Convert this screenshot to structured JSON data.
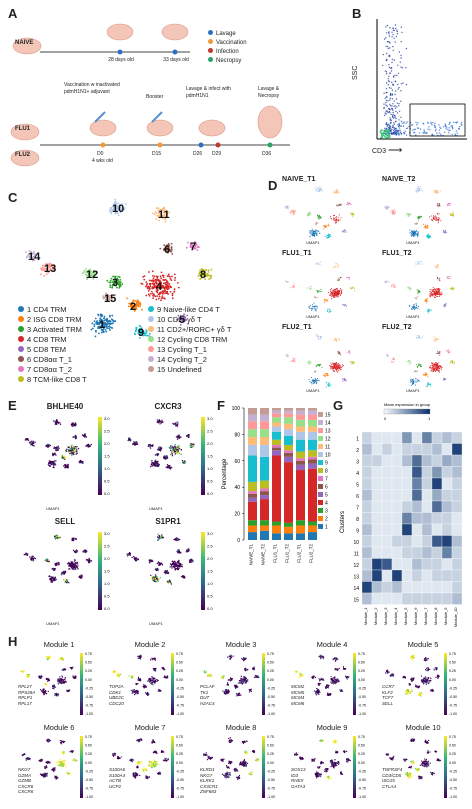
{
  "panels": {
    "A": "A",
    "B": "B",
    "C": "C",
    "D": "D",
    "E": "E",
    "F": "F",
    "G": "G",
    "H": "H"
  },
  "timeline": {
    "groups": [
      "NAIVE",
      "FLU1",
      "FLU2"
    ],
    "naive_ages": [
      "28 days old",
      "33 days old"
    ],
    "legend": [
      {
        "label": "Lavage",
        "color": "#2e6fc1"
      },
      {
        "label": "Vaccination",
        "color": "#f29a3a"
      },
      {
        "label": "Infection",
        "color": "#c0392b"
      },
      {
        "label": "Necropsy",
        "color": "#2aa36b"
      }
    ],
    "events": [
      "Vaccination w inactivated pdmH1N1+ adjuvant",
      "Booster",
      "Lavage & infect with pdmH1N1",
      "Lavage & Necropsy"
    ],
    "days": [
      "D0",
      "D15",
      "D26",
      "D29",
      "D36"
    ],
    "age_note": "4 wks old"
  },
  "flow": {
    "xlabel": "CD3",
    "ylabel": "SSC"
  },
  "umap_clusters": [
    {
      "id": "1",
      "name": "CD4 TRM",
      "color": "#1f77b4"
    },
    {
      "id": "2",
      "name": "ISG CD8 TRM",
      "color": "#ff7f0e"
    },
    {
      "id": "3",
      "name": "Activated TRM",
      "color": "#2ca02c"
    },
    {
      "id": "4",
      "name": "CD8 TRM",
      "color": "#d62728"
    },
    {
      "id": "5",
      "name": "CD8 TEM",
      "color": "#9467bd"
    },
    {
      "id": "6",
      "name": "CD8αα T_1",
      "color": "#8c564b"
    },
    {
      "id": "7",
      "name": "CD8αα T_2",
      "color": "#e377c2"
    },
    {
      "id": "8",
      "name": "TCM-like CD8 T",
      "color": "#bcbd22"
    },
    {
      "id": "9",
      "name": "Naive-like CD4 T",
      "color": "#17becf"
    },
    {
      "id": "10",
      "name": "CD2- γδ T",
      "color": "#aec7e8"
    },
    {
      "id": "11",
      "name": "CD2+/RORC+ γδ T",
      "color": "#ffbb78"
    },
    {
      "id": "12",
      "name": "Cycling CD8 TRM",
      "color": "#98df8a"
    },
    {
      "id": "13",
      "name": "Cycling T_1",
      "color": "#ff9896"
    },
    {
      "id": "14",
      "name": "Cycling T_2",
      "color": "#c5b0d5"
    },
    {
      "id": "15",
      "name": "Undefined",
      "color": "#c49c94"
    }
  ],
  "umap_axis": {
    "x": "UMAP1",
    "y": "UMAP2"
  },
  "samples": [
    "NAIVE_T1",
    "NAIVE_T2",
    "FLU1_T1",
    "FLU1_T2",
    "FLU2_T1",
    "FLU2_T2"
  ],
  "genes": [
    "BHLHE40",
    "CXCR3",
    "SELL",
    "S1PR1"
  ],
  "gene_scale": [
    "3.0",
    "2.5",
    "2.0",
    "1.5",
    "1.0",
    "0.5",
    "0.0"
  ],
  "chart_data": {
    "type": "bar",
    "stacked": true,
    "categories": [
      "NAIVE_T1",
      "NAIVE_T2",
      "FLU1_T1",
      "FLU1_T2",
      "FLU2_T1",
      "FLU2_T2"
    ],
    "ylabel": "Percentage",
    "ylim": [
      0,
      100
    ],
    "yticks": [
      0,
      20,
      40,
      60,
      80,
      100
    ],
    "legend_order": [
      "15",
      "14",
      "13",
      "12",
      "11",
      "10",
      "9",
      "8",
      "7",
      "6",
      "5",
      "4",
      "3",
      "2",
      "1"
    ],
    "series": [
      {
        "name": "1",
        "values": [
          6,
          7,
          5,
          5,
          5,
          6
        ]
      },
      {
        "name": "2",
        "values": [
          5,
          4,
          6,
          5,
          6,
          5
        ]
      },
      {
        "name": "3",
        "values": [
          4,
          4,
          3,
          3,
          4,
          3
        ]
      },
      {
        "name": "4",
        "values": [
          14,
          16,
          50,
          46,
          38,
          40
        ]
      },
      {
        "name": "5",
        "values": [
          3,
          3,
          4,
          4,
          4,
          4
        ]
      },
      {
        "name": "6",
        "values": [
          3,
          3,
          2,
          3,
          3,
          3
        ]
      },
      {
        "name": "7",
        "values": [
          2,
          2,
          2,
          2,
          2,
          2
        ]
      },
      {
        "name": "8",
        "values": [
          7,
          6,
          4,
          4,
          5,
          5
        ]
      },
      {
        "name": "9",
        "values": [
          20,
          18,
          6,
          7,
          9,
          8
        ]
      },
      {
        "name": "10",
        "values": [
          8,
          9,
          4,
          5,
          6,
          6
        ]
      },
      {
        "name": "11",
        "values": [
          6,
          6,
          3,
          4,
          4,
          4
        ]
      },
      {
        "name": "12",
        "values": [
          6,
          6,
          4,
          5,
          5,
          5
        ]
      },
      {
        "name": "13",
        "values": [
          6,
          6,
          3,
          3,
          4,
          4
        ]
      },
      {
        "name": "14",
        "values": [
          5,
          5,
          2,
          2,
          3,
          3
        ]
      },
      {
        "name": "15",
        "values": [
          5,
          5,
          2,
          2,
          2,
          2
        ]
      }
    ]
  },
  "heatmap": {
    "title": "Mean expression in group",
    "scale": [
      "0",
      "1"
    ],
    "ylabel": "Clusters",
    "rows": [
      "1",
      "2",
      "3",
      "4",
      "5",
      "6",
      "7",
      "8",
      "9",
      "10",
      "11",
      "12",
      "13",
      "14",
      "15"
    ],
    "cols": [
      "Module_1",
      "Module_2",
      "Module_3",
      "Module_4",
      "Module_5",
      "Module_6",
      "Module_7",
      "Module_8",
      "Module_9",
      "Module_10"
    ],
    "values": [
      [
        0.2,
        0.1,
        0.1,
        0.1,
        0.5,
        0.1,
        0.6,
        0.2,
        0.3,
        0.2
      ],
      [
        0.3,
        0.1,
        0.2,
        0.1,
        0.2,
        0.2,
        0.2,
        0.3,
        0.1,
        0.9
      ],
      [
        0.2,
        0.2,
        0.1,
        0.1,
        0.3,
        0.7,
        0.3,
        0.2,
        0.4,
        0.3
      ],
      [
        0.2,
        0.1,
        0.1,
        0.1,
        0.1,
        0.8,
        0.2,
        0.5,
        0.2,
        0.3
      ],
      [
        0.2,
        0.1,
        0.1,
        0.1,
        0.1,
        0.6,
        0.2,
        0.9,
        0.1,
        0.2
      ],
      [
        0.3,
        0.1,
        0.1,
        0.1,
        0.1,
        0.7,
        0.1,
        0.4,
        0.2,
        0.2
      ],
      [
        0.2,
        0.1,
        0.1,
        0.1,
        0.2,
        0.3,
        0.1,
        0.7,
        0.3,
        0.2
      ],
      [
        0.2,
        0.1,
        0.1,
        0.1,
        0.6,
        0.3,
        0.3,
        0.2,
        0.2,
        0.1
      ],
      [
        0.3,
        0.1,
        0.1,
        0.1,
        0.9,
        0.1,
        0.3,
        0.1,
        0.2,
        0.1
      ],
      [
        0.2,
        0.1,
        0.1,
        0.2,
        0.2,
        0.1,
        0.2,
        0.8,
        0.9,
        0.3
      ],
      [
        0.3,
        0.1,
        0.1,
        0.1,
        0.2,
        0.2,
        0.3,
        0.2,
        0.6,
        0.2
      ],
      [
        0.2,
        0.9,
        0.8,
        0.1,
        0.1,
        0.3,
        0.2,
        0.2,
        0.1,
        0.2
      ],
      [
        0.3,
        0.9,
        0.1,
        0.9,
        0.1,
        0.2,
        0.1,
        0.2,
        0.2,
        0.2
      ],
      [
        0.9,
        0.3,
        0.2,
        0.3,
        0.1,
        0.1,
        0.1,
        0.1,
        0.1,
        0.2
      ],
      [
        0.3,
        0.1,
        0.1,
        0.1,
        0.2,
        0.2,
        0.2,
        0.2,
        0.2,
        0.3
      ]
    ]
  },
  "modules": [
    {
      "name": "Module 1",
      "genes": [
        "RPL27",
        "RPS28A",
        "RPLP1",
        "RPL17"
      ]
    },
    {
      "name": "Module 2",
      "genes": [
        "TOP2A",
        "CDK1",
        "UBE2C",
        "CDC20"
      ]
    },
    {
      "name": "Module 3",
      "genes": [
        "PCLAF",
        "TK1",
        "DUT",
        "H2AC4"
      ]
    },
    {
      "name": "Module 4",
      "genes": [
        "MCM2",
        "MCM5",
        "MCM4",
        "MCM6"
      ]
    },
    {
      "name": "Module 5",
      "genes": [
        "CCR7",
        "KLF2",
        "TCF7",
        "SELL"
      ]
    },
    {
      "name": "Module 6",
      "genes": [
        "NKG7",
        "GZMA",
        "GZMB",
        "CXCR6",
        "CXCR6"
      ]
    },
    {
      "name": "Module 7",
      "genes": [
        "S100A6",
        "S100A4",
        "ACTB",
        "UCP2"
      ]
    },
    {
      "name": "Module 8",
      "genes": [
        "KLRD1",
        "NKG7",
        "KLRK1",
        "CX3CR1",
        "ZNF683"
      ]
    },
    {
      "name": "Module 9",
      "genes": [
        "SOX13",
        "ID3",
        "RHEX",
        "GATA3"
      ]
    },
    {
      "name": "Module 10",
      "genes": [
        "TNFRSF4",
        "CD3/CD5",
        "ISG15",
        "CTLA4"
      ]
    }
  ],
  "module_scale": [
    "0.75",
    "0.50",
    "0.25",
    "0.00",
    "-0.25",
    "-0.50",
    "-0.75",
    "-1.00"
  ]
}
